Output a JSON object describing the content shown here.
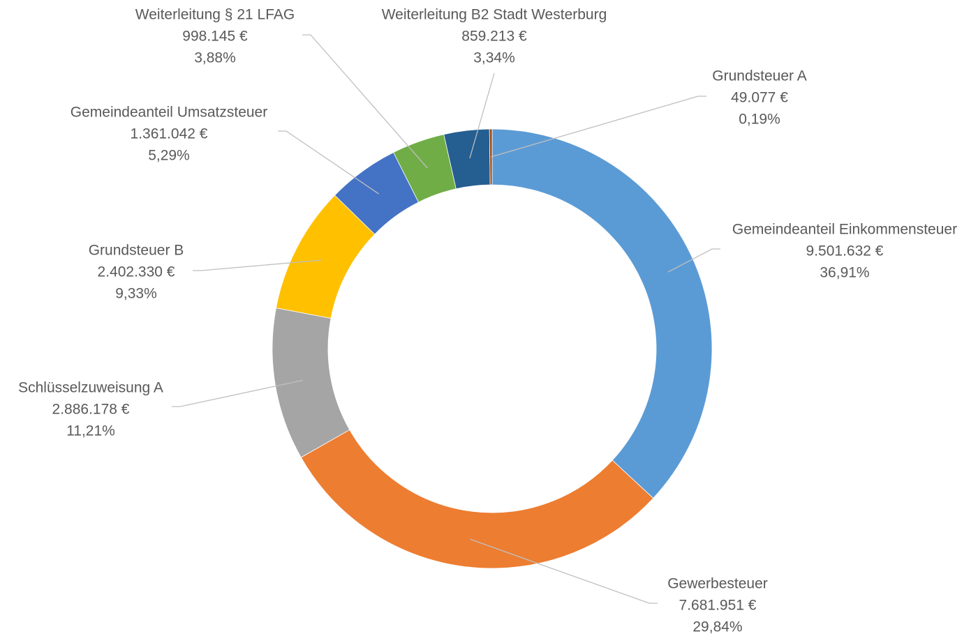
{
  "chart_data": {
    "type": "donut",
    "categories": [
      "Gemeindeanteil Einkommensteuer",
      "Gewerbesteuer",
      "Schlüsselzuweisung A",
      "Grundsteuer B",
      "Gemeindeanteil Umsatzsteuer",
      "Weiterleitung § 21 LFAG",
      "Weiterleitung B2 Stadt Westerburg",
      "Grundsteuer A"
    ],
    "values": [
      9501632,
      7681951,
      2886178,
      2402330,
      1361042,
      998145,
      859213,
      49077
    ],
    "value_labels": [
      "9.501.632 €",
      "7.681.951 €",
      "2.886.178 €",
      "2.402.330 €",
      "1.361.042 €",
      "998.145 €",
      "859.213 €",
      "49.077 €"
    ],
    "percentages": [
      36.91,
      29.84,
      11.21,
      9.33,
      5.29,
      3.88,
      3.34,
      0.19
    ],
    "percentage_labels": [
      "36,91%",
      "29,84%",
      "11,21%",
      "9,33%",
      "5,29%",
      "3,88%",
      "3,34%",
      "0,19%"
    ],
    "colors": [
      "#5b9bd5",
      "#ed7d31",
      "#a5a5a5",
      "#ffc000",
      "#4472c4",
      "#70ad47",
      "#255e91",
      "#9e480e"
    ]
  }
}
